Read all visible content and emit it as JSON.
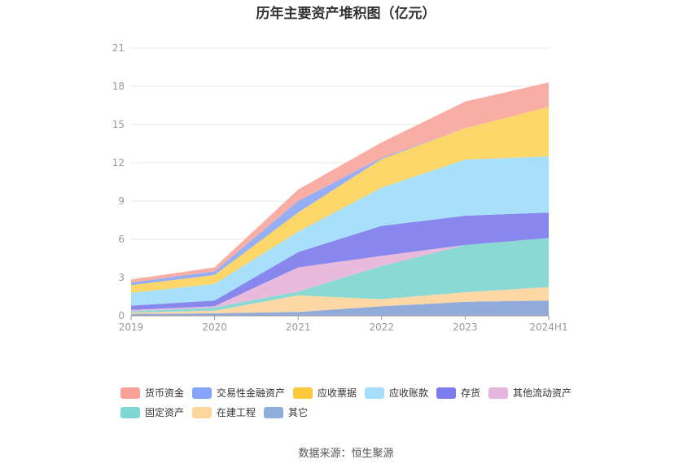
{
  "title": "历年主要资产堆积图（亿元）",
  "source": "数据来源：恒生聚源",
  "chart_data": {
    "type": "area",
    "stacked": true,
    "categories": [
      "2019",
      "2020",
      "2021",
      "2022",
      "2023",
      "2024H1"
    ],
    "ylim": [
      0,
      21
    ],
    "yticks": [
      0,
      3,
      6,
      9,
      12,
      15,
      18,
      21
    ],
    "grid": true,
    "legend_position": "bottom",
    "series": [
      {
        "name": "其它",
        "color": "#91acdb",
        "values": [
          0.15,
          0.2,
          0.3,
          0.75,
          1.1,
          1.2
        ]
      },
      {
        "name": "在建工程",
        "color": "#fdd8a5",
        "values": [
          0.1,
          0.2,
          1.3,
          0.55,
          0.75,
          1.05
        ]
      },
      {
        "name": "固定资产",
        "color": "#8ad9d5",
        "values": [
          0.1,
          0.25,
          0.3,
          2.6,
          3.7,
          3.85
        ]
      },
      {
        "name": "其他流动资产",
        "color": "#e8bbdc",
        "values": [
          0.1,
          0.1,
          1.9,
          0.8,
          0.0,
          0.0
        ]
      },
      {
        "name": "存货",
        "color": "#8787ee",
        "values": [
          0.35,
          0.45,
          1.2,
          2.35,
          2.3,
          2.0
        ]
      },
      {
        "name": "应收账款",
        "color": "#a8e0fb",
        "values": [
          1.0,
          1.3,
          1.6,
          3.0,
          4.4,
          4.4
        ]
      },
      {
        "name": "应收票据",
        "color": "#fdd66a",
        "values": [
          0.6,
          0.7,
          1.5,
          2.25,
          2.45,
          3.9
        ]
      },
      {
        "name": "交易性金融资产",
        "color": "#95aef5",
        "values": [
          0.2,
          0.3,
          0.9,
          0.1,
          0.0,
          0.0
        ]
      },
      {
        "name": "货币资金",
        "color": "#f9aea5",
        "values": [
          0.25,
          0.3,
          0.9,
          1.2,
          2.1,
          1.9
        ]
      }
    ]
  },
  "legend": [
    {
      "label": "货币资金",
      "color": "#f7a196"
    },
    {
      "label": "交易性金融资产",
      "color": "#86a4f9"
    },
    {
      "label": "应收票据",
      "color": "#fcc93c"
    },
    {
      "label": "应收账款",
      "color": "#a5ddfa"
    },
    {
      "label": "存货",
      "color": "#7c7cf0"
    },
    {
      "label": "其他流动资产",
      "color": "#e5b6dd"
    },
    {
      "label": "固定资产",
      "color": "#7fd7d3"
    },
    {
      "label": "在建工程",
      "color": "#fcd59d"
    },
    {
      "label": "其它",
      "color": "#8faedb"
    }
  ]
}
